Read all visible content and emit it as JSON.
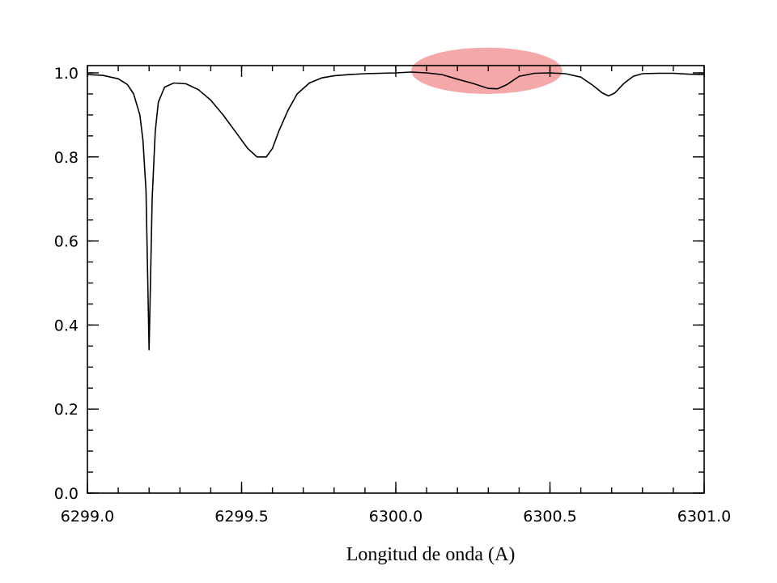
{
  "chart_data": {
    "type": "line",
    "title": "",
    "xlabel": "Longitud de onda (A)",
    "ylabel": "",
    "xlim": [
      6299.0,
      6301.0
    ],
    "ylim": [
      0.0,
      1.0
    ],
    "x_ticks": [
      "6299.0",
      "6299.5",
      "6300.0",
      "6300.5",
      "6301.0"
    ],
    "y_ticks": [
      "0.0",
      "0.2",
      "0.4",
      "0.6",
      "0.8",
      "1.0"
    ],
    "grid": false,
    "line_color": "#000000",
    "highlight": {
      "shape": "ellipse",
      "color": "#f4a8a8",
      "x_range": [
        6300.05,
        6300.54
      ],
      "y_range": [
        0.95,
        1.06
      ]
    },
    "series": [
      {
        "x": [
          6299.0,
          6299.05,
          6299.1,
          6299.13,
          6299.15,
          6299.17,
          6299.18,
          6299.19,
          6299.2,
          6299.21,
          6299.22,
          6299.23,
          6299.25,
          6299.28,
          6299.32,
          6299.36,
          6299.4,
          6299.44,
          6299.48,
          6299.52,
          6299.55,
          6299.58,
          6299.6,
          6299.62,
          6299.65,
          6299.68,
          6299.72,
          6299.76,
          6299.8,
          6299.85,
          6299.9,
          6299.95,
          6300.0,
          6300.05,
          6300.1,
          6300.15,
          6300.2,
          6300.25,
          6300.3,
          6300.33,
          6300.36,
          6300.4,
          6300.45,
          6300.5,
          6300.55,
          6300.6,
          6300.64,
          6300.67,
          6300.69,
          6300.71,
          6300.74,
          6300.77,
          6300.8,
          6300.85,
          6300.9,
          6300.95,
          6301.0
        ],
        "y": [
          0.996,
          0.994,
          0.986,
          0.972,
          0.95,
          0.9,
          0.84,
          0.72,
          0.34,
          0.7,
          0.86,
          0.93,
          0.966,
          0.976,
          0.974,
          0.96,
          0.935,
          0.9,
          0.86,
          0.82,
          0.8,
          0.8,
          0.82,
          0.86,
          0.91,
          0.95,
          0.976,
          0.988,
          0.993,
          0.996,
          0.998,
          0.999,
          1.0,
          1.002,
          1.0,
          0.996,
          0.985,
          0.975,
          0.963,
          0.962,
          0.972,
          0.992,
          0.999,
          1.0,
          0.998,
          0.99,
          0.97,
          0.952,
          0.945,
          0.952,
          0.975,
          0.992,
          0.998,
          0.999,
          0.999,
          0.997,
          0.996
        ]
      }
    ]
  }
}
